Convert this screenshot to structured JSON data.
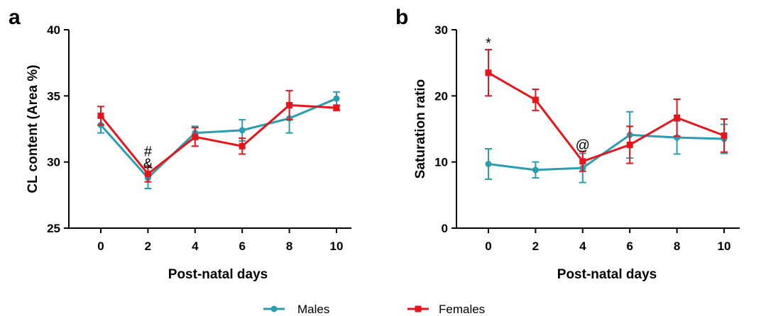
{
  "colors": {
    "males": "#2a9db1",
    "females": "#e8141b"
  },
  "legend": {
    "males": "Males",
    "females": "Females"
  },
  "chart_data": [
    {
      "panel": "a",
      "type": "line",
      "xlabel": "Post-natal days",
      "ylabel": "CL content (Area %)",
      "ylim": [
        25,
        40
      ],
      "yticks": [
        "25",
        "30",
        "35",
        "40"
      ],
      "categories": [
        "0",
        "2",
        "4",
        "6",
        "8",
        "10"
      ],
      "series": [
        {
          "name": "Males",
          "marker": "circle",
          "values": [
            32.8,
            28.8,
            32.2,
            32.4,
            33.3,
            34.8
          ],
          "errors": [
            0.6,
            0.8,
            0.5,
            0.8,
            1.1,
            0.5
          ]
        },
        {
          "name": "Females",
          "marker": "square",
          "values": [
            33.5,
            29.1,
            31.9,
            31.2,
            34.3,
            34.1
          ],
          "errors": [
            0.7,
            0.6,
            0.7,
            0.6,
            1.1,
            0.2
          ]
        }
      ],
      "annotations": [
        {
          "text": "#",
          "x": "2",
          "y": 30.8
        },
        {
          "text": "&",
          "x": "2",
          "y": 29.9
        }
      ]
    },
    {
      "panel": "b",
      "type": "line",
      "xlabel": "Post-natal days",
      "ylabel": "Saturation ratio",
      "ylim": [
        0,
        30
      ],
      "yticks": [
        "0",
        "10",
        "20",
        "30"
      ],
      "categories": [
        "0",
        "2",
        "4",
        "6",
        "8",
        "10"
      ],
      "series": [
        {
          "name": "Males",
          "marker": "circle",
          "values": [
            9.7,
            8.8,
            9.1,
            14.1,
            13.7,
            13.5
          ],
          "errors": [
            2.3,
            1.2,
            2.2,
            3.5,
            2.5,
            2.2
          ]
        },
        {
          "name": "Females",
          "marker": "square",
          "values": [
            23.5,
            19.4,
            10.1,
            12.6,
            16.7,
            14.0
          ],
          "errors": [
            3.5,
            1.6,
            1.5,
            2.8,
            2.8,
            2.5
          ]
        }
      ],
      "annotations": [
        {
          "text": "*",
          "x": "0",
          "y": 28.0
        },
        {
          "text": "@",
          "x": "4",
          "y": 12.6
        }
      ]
    }
  ]
}
